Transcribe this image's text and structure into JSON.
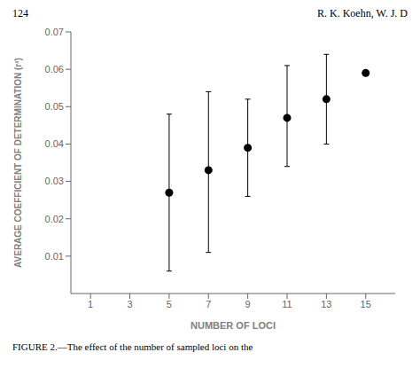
{
  "chart_data": {
    "type": "scatter",
    "annotations": [
      "124",
      "R. K. Koehn, W. J. D",
      "FIGURE 2.—The effect of the number of sampled loci on the"
    ],
    "x": [
      5,
      7,
      9,
      11,
      13,
      15
    ],
    "values": [
      0.027,
      0.033,
      0.039,
      0.047,
      0.052,
      0.059
    ],
    "error_upper": [
      0.048,
      0.054,
      0.052,
      0.061,
      0.064,
      null
    ],
    "error_lower": [
      0.006,
      0.011,
      0.026,
      0.034,
      0.04,
      null
    ],
    "xlim": [
      0.0,
      16.5
    ],
    "ylim": [
      0,
      0.07
    ],
    "xticks": [
      1,
      3,
      5,
      7,
      9,
      11,
      13,
      15
    ],
    "yticks": [
      0.01,
      0.02,
      0.03,
      0.04,
      0.05,
      0.06,
      0.07
    ],
    "xlabel": "NUMBER OF LOCI",
    "ylabel": "AVERAGE COEFFICIENT OF DETERMINATION (r²)",
    "color": "#000000",
    "marker": "circle",
    "grid": false
  }
}
